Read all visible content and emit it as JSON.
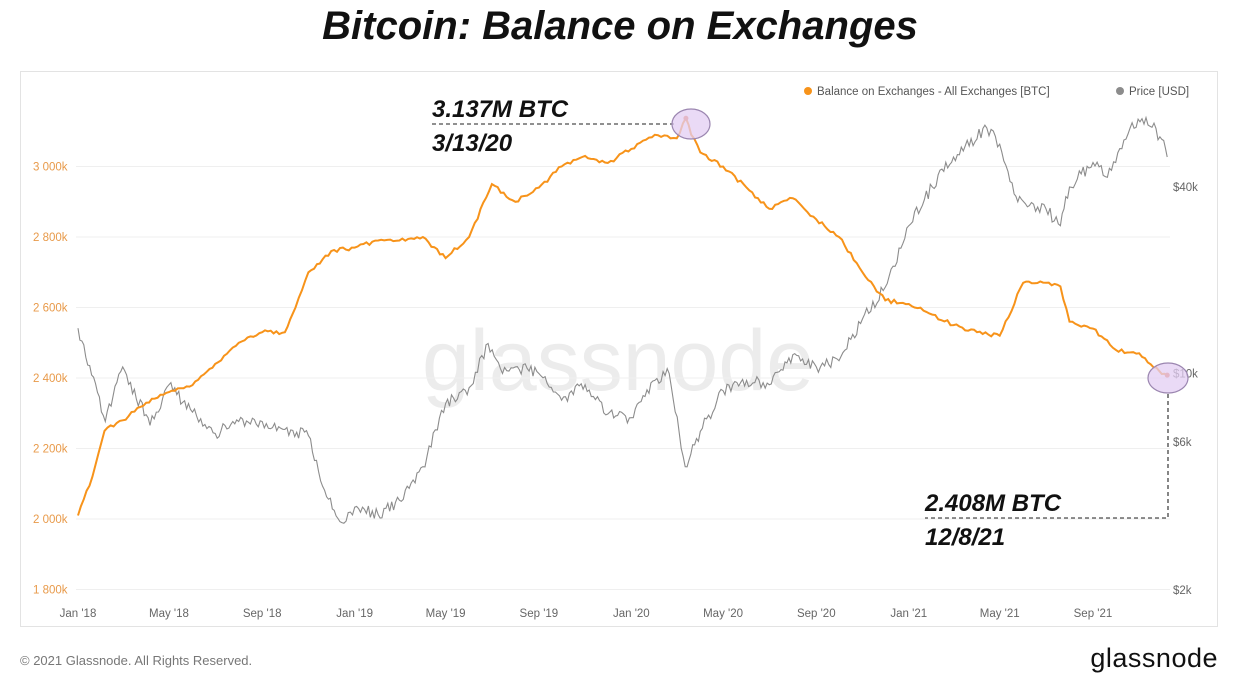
{
  "title": "Bitcoin: Balance on Exchanges",
  "footer": {
    "copyright": "© 2021 Glassnode. All Rights Reserved.",
    "brand": "glassnode"
  },
  "watermark": "glassnode",
  "colors": {
    "balance": "#f7931a",
    "price": "#8c8c8c",
    "highlight_fill": "#e3cdf3",
    "highlight_stroke": "#9b86b0",
    "annotation_text": "#111111",
    "axis_left_text": "#e89a4a",
    "axis_text": "#666666"
  },
  "annotations": [
    {
      "line1": "3.137M BTC",
      "line2": "3/13/20"
    },
    {
      "line1": "2.408M BTC",
      "line2": "12/8/21"
    }
  ],
  "chart_data": {
    "type": "line",
    "title": "Bitcoin: Balance on Exchanges",
    "legend_placement": "top-right",
    "grid": true,
    "x_ticks": [
      "Jan '18",
      "May '18",
      "Sep '18",
      "Jan '19",
      "May '19",
      "Sep '19",
      "Jan '20",
      "May '20",
      "Sep '20",
      "Jan '21",
      "May '21",
      "Sep '21"
    ],
    "y_left": {
      "ticks": [
        "1 800k",
        "2 000k",
        "2 200k",
        "2 400k",
        "2 600k",
        "2 800k",
        "3 000k"
      ],
      "range": [
        1800000,
        3200000
      ]
    },
    "y_right": {
      "scale": "log",
      "ticks": [
        "$2k",
        "$6k",
        "$10k",
        "$40k"
      ],
      "range": [
        2000,
        65000
      ]
    },
    "x_range": [
      "2018-01-01",
      "2021-12-09"
    ],
    "series": [
      {
        "name": "Balance on Exchanges - All Exchanges [BTC]",
        "axis": "left",
        "points": [
          [
            "2018-01-01",
            2010000
          ],
          [
            "2018-01-20",
            2120000
          ],
          [
            "2018-02-05",
            2250000
          ],
          [
            "2018-03-01",
            2280000
          ],
          [
            "2018-04-01",
            2330000
          ],
          [
            "2018-05-01",
            2360000
          ],
          [
            "2018-06-01",
            2380000
          ],
          [
            "2018-07-01",
            2440000
          ],
          [
            "2018-08-01",
            2500000
          ],
          [
            "2018-09-01",
            2530000
          ],
          [
            "2018-10-01",
            2530000
          ],
          [
            "2018-10-15",
            2600000
          ],
          [
            "2018-11-01",
            2700000
          ],
          [
            "2018-12-01",
            2760000
          ],
          [
            "2019-01-01",
            2770000
          ],
          [
            "2019-02-01",
            2790000
          ],
          [
            "2019-03-01",
            2790000
          ],
          [
            "2019-04-01",
            2800000
          ],
          [
            "2019-05-01",
            2740000
          ],
          [
            "2019-06-01",
            2800000
          ],
          [
            "2019-07-01",
            2950000
          ],
          [
            "2019-08-01",
            2900000
          ],
          [
            "2019-09-01",
            2940000
          ],
          [
            "2019-10-01",
            3000000
          ],
          [
            "2019-11-01",
            3030000
          ],
          [
            "2019-12-01",
            3010000
          ],
          [
            "2020-01-01",
            3050000
          ],
          [
            "2020-02-01",
            3090000
          ],
          [
            "2020-03-01",
            3080000
          ],
          [
            "2020-03-13",
            3137000
          ],
          [
            "2020-03-20",
            3090000
          ],
          [
            "2020-04-01",
            3040000
          ],
          [
            "2020-05-01",
            3000000
          ],
          [
            "2020-06-01",
            2940000
          ],
          [
            "2020-07-01",
            2880000
          ],
          [
            "2020-08-01",
            2910000
          ],
          [
            "2020-09-01",
            2850000
          ],
          [
            "2020-10-01",
            2800000
          ],
          [
            "2020-11-01",
            2700000
          ],
          [
            "2020-12-01",
            2620000
          ],
          [
            "2021-01-01",
            2610000
          ],
          [
            "2021-02-01",
            2580000
          ],
          [
            "2021-03-01",
            2550000
          ],
          [
            "2021-04-01",
            2530000
          ],
          [
            "2021-05-01",
            2520000
          ],
          [
            "2021-06-01",
            2670000
          ],
          [
            "2021-07-01",
            2670000
          ],
          [
            "2021-07-20",
            2660000
          ],
          [
            "2021-08-01",
            2560000
          ],
          [
            "2021-09-01",
            2540000
          ],
          [
            "2021-10-01",
            2480000
          ],
          [
            "2021-11-01",
            2470000
          ],
          [
            "2021-11-20",
            2430000
          ],
          [
            "2021-12-08",
            2408000
          ]
        ]
      },
      {
        "name": "Price [USD]",
        "axis": "right",
        "points": [
          [
            "2018-01-01",
            14000
          ],
          [
            "2018-02-06",
            7000
          ],
          [
            "2018-03-01",
            10500
          ],
          [
            "2018-04-06",
            6800
          ],
          [
            "2018-05-01",
            9200
          ],
          [
            "2018-06-01",
            7500
          ],
          [
            "2018-07-01",
            6400
          ],
          [
            "2018-08-01",
            7000
          ],
          [
            "2018-09-01",
            7000
          ],
          [
            "2018-10-01",
            6600
          ],
          [
            "2018-11-01",
            6300
          ],
          [
            "2018-11-25",
            4000
          ],
          [
            "2018-12-15",
            3300
          ],
          [
            "2019-01-01",
            3700
          ],
          [
            "2019-02-01",
            3500
          ],
          [
            "2019-03-01",
            3900
          ],
          [
            "2019-04-01",
            5000
          ],
          [
            "2019-05-01",
            8000
          ],
          [
            "2019-06-01",
            9000
          ],
          [
            "2019-06-26",
            12500
          ],
          [
            "2019-07-15",
            10000
          ],
          [
            "2019-08-01",
            10500
          ],
          [
            "2019-09-01",
            10000
          ],
          [
            "2019-10-01",
            8200
          ],
          [
            "2019-11-01",
            9200
          ],
          [
            "2019-12-01",
            7400
          ],
          [
            "2020-01-01",
            7200
          ],
          [
            "2020-02-01",
            9500
          ],
          [
            "2020-02-20",
            10000
          ],
          [
            "2020-03-12",
            5000
          ],
          [
            "2020-04-01",
            6500
          ],
          [
            "2020-05-01",
            8800
          ],
          [
            "2020-06-01",
            9500
          ],
          [
            "2020-07-01",
            9200
          ],
          [
            "2020-08-01",
            11500
          ],
          [
            "2020-09-01",
            10500
          ],
          [
            "2020-10-01",
            11000
          ],
          [
            "2020-11-01",
            15000
          ],
          [
            "2020-12-01",
            19000
          ],
          [
            "2021-01-01",
            30000
          ],
          [
            "2021-02-01",
            40000
          ],
          [
            "2021-03-01",
            50000
          ],
          [
            "2021-04-14",
            62000
          ],
          [
            "2021-05-01",
            55000
          ],
          [
            "2021-05-20",
            38000
          ],
          [
            "2021-06-01",
            36000
          ],
          [
            "2021-07-01",
            34000
          ],
          [
            "2021-07-20",
            30000
          ],
          [
            "2021-08-01",
            40000
          ],
          [
            "2021-09-01",
            48000
          ],
          [
            "2021-09-20",
            43000
          ],
          [
            "2021-10-01",
            48000
          ],
          [
            "2021-10-20",
            62000
          ],
          [
            "2021-11-10",
            67000
          ],
          [
            "2021-12-01",
            57000
          ],
          [
            "2021-12-08",
            50000
          ]
        ]
      }
    ]
  }
}
